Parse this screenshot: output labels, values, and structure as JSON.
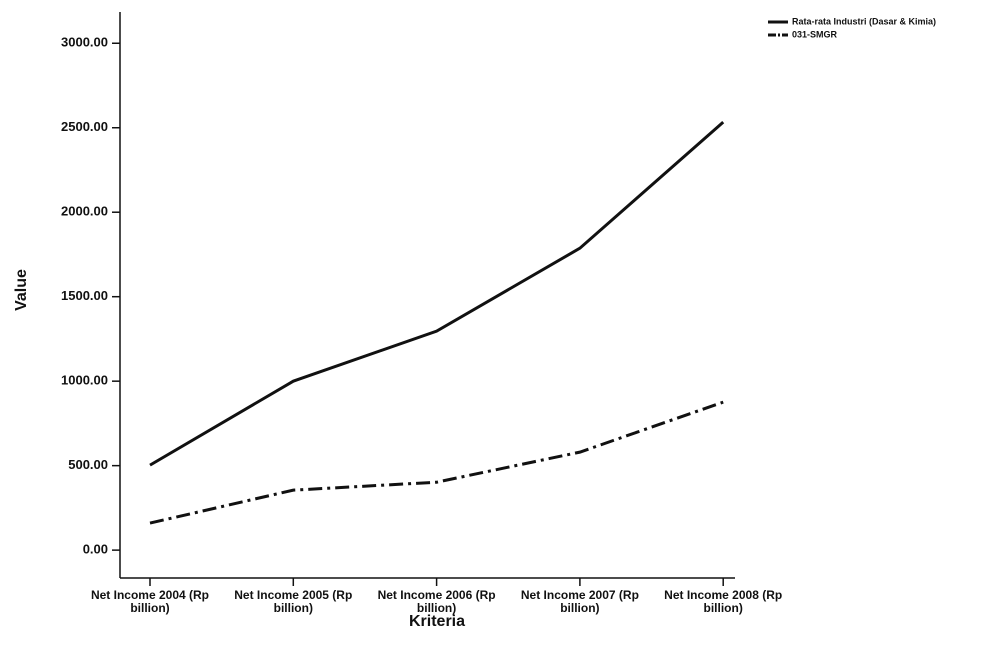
{
  "chart_data": {
    "type": "line",
    "x_label": "Kriteria",
    "y_label": "Value",
    "categories": [
      "Net Income 2004 (Rp billion)",
      "Net Income 2005 (Rp billion)",
      "Net Income 2006 (Rp billion)",
      "Net Income 2007 (Rp billion)",
      "Net Income 2008 (Rp billion)"
    ],
    "series": [
      {
        "name": "Rata-rata Industri (Dasar & Kimia)",
        "color": "#111111",
        "dash": "solid",
        "values": [
          503,
          1000,
          1296,
          1787,
          2533
        ]
      },
      {
        "name": "031-SMGR",
        "color": "#111111",
        "dash": "dashdot",
        "values": [
          160,
          355,
          402,
          580,
          876
        ]
      }
    ],
    "ylim": [
      -165,
      3185
    ],
    "yticks": [
      {
        "value": 0,
        "label": "0.00"
      },
      {
        "value": 500,
        "label": "500.00"
      },
      {
        "value": 1000,
        "label": "1000.00"
      },
      {
        "value": 1500,
        "label": "1500.00"
      },
      {
        "value": 2000,
        "label": "2000.00"
      },
      {
        "value": 2500,
        "label": "2500.00"
      },
      {
        "value": 3000,
        "label": "3000.00"
      }
    ],
    "grid": false,
    "legend": "top-right"
  }
}
